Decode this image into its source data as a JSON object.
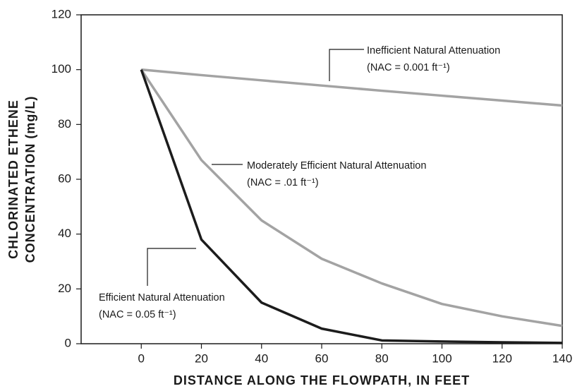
{
  "chart_data": {
    "type": "line",
    "x_label": "DISTANCE ALONG THE FLOWPATH, IN FEET",
    "y_label": [
      "CHLORINATED ETHENE",
      "CONCENTRATION (mg/L)"
    ],
    "x": [
      0,
      20,
      40,
      60,
      80,
      100,
      120,
      140
    ],
    "series": [
      {
        "name": "Inefficient Natural Attenuation",
        "color": "#a3a3a3",
        "values": [
          100,
          98,
          96.1,
          94.2,
          92.3,
          90.5,
          88.7,
          86.9
        ]
      },
      {
        "name": "Moderately  Efficient Natural Attenuation",
        "color": "#a3a3a3",
        "values": [
          100,
          67,
          45,
          31,
          22,
          14.5,
          10,
          6.5
        ]
      },
      {
        "name": "Efficient Natural Attenuation",
        "color": "#1c1c1c",
        "values": [
          100,
          38,
          15,
          5.5,
          1.2,
          0.8,
          0.5,
          0.3
        ]
      }
    ],
    "annotations": [
      "(NAC = 0.001 ft⁻¹)",
      "(NAC = .01 ft⁻¹)",
      "(NAC = 0.05 ft⁻¹)"
    ],
    "xlim": [
      -20,
      140
    ],
    "ylim": [
      0,
      120
    ],
    "xticks": [
      0,
      20,
      40,
      60,
      80,
      100,
      120,
      140
    ],
    "yticks": [
      0,
      20,
      40,
      60,
      80,
      100,
      120
    ]
  }
}
